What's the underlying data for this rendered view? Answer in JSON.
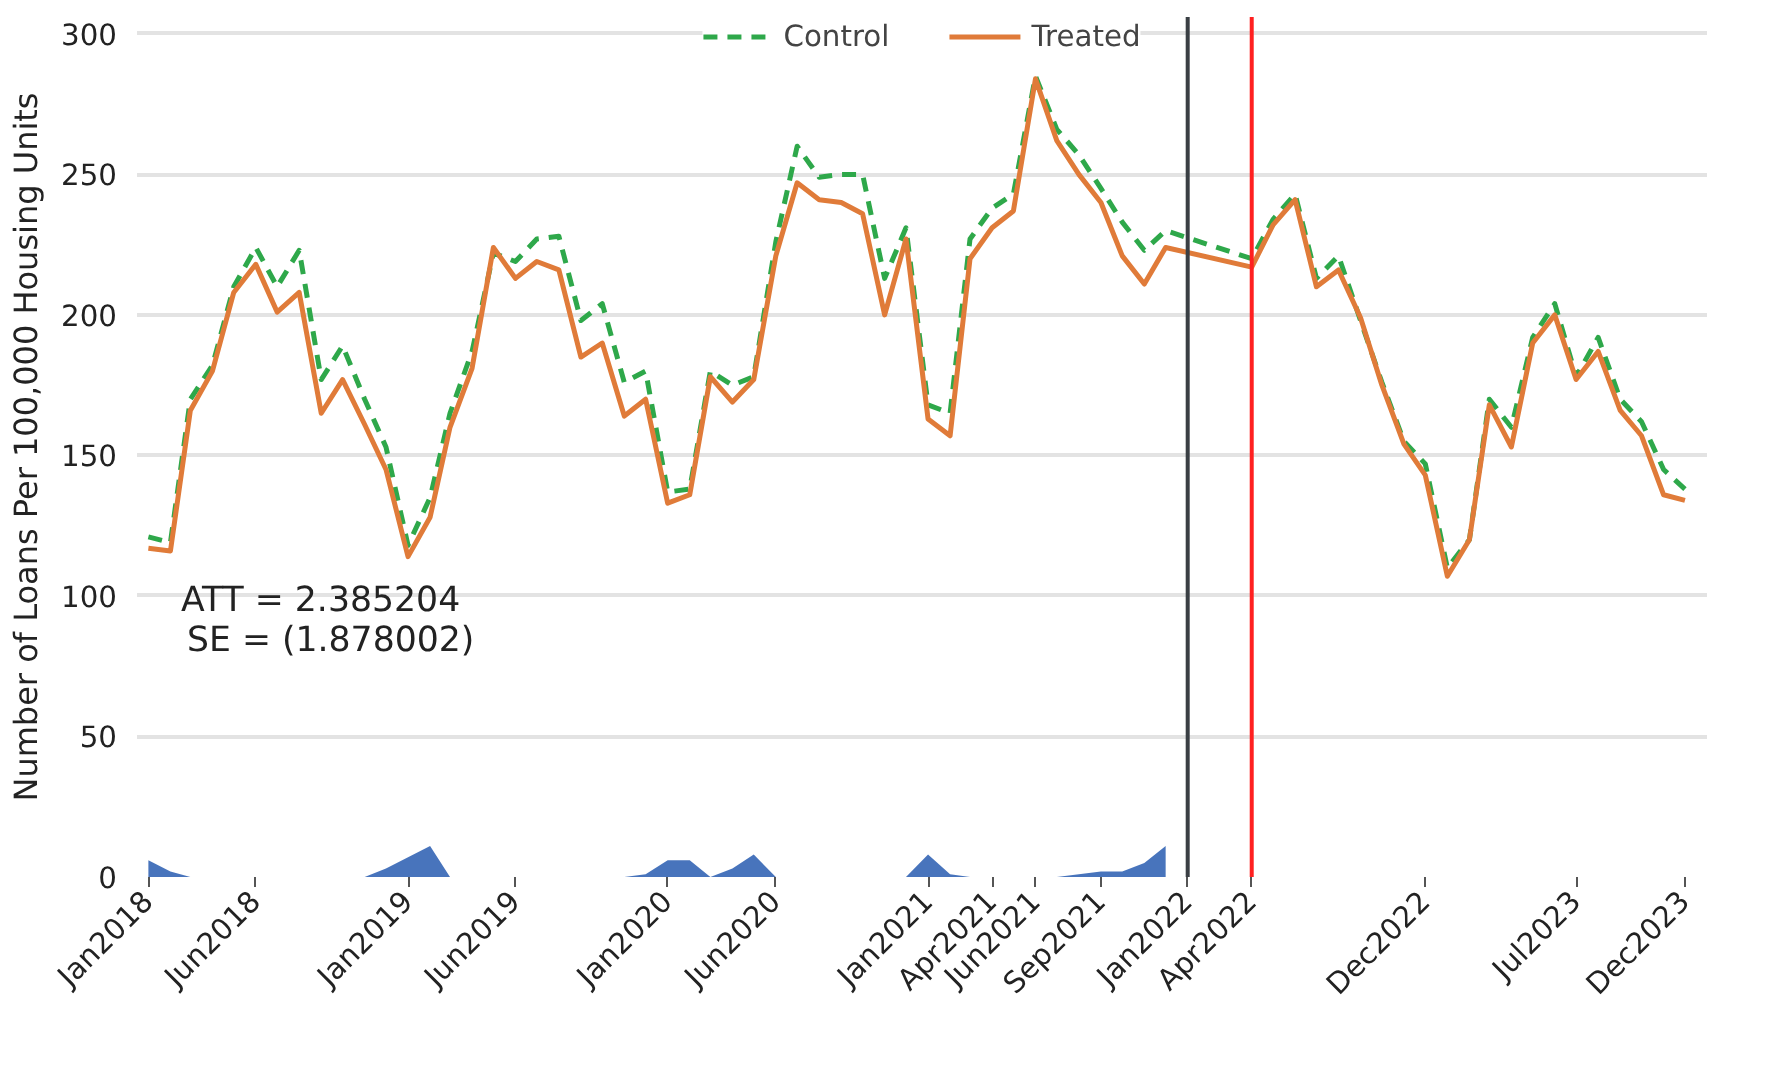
{
  "chart_data": {
    "type": "line",
    "ylabel": "Number of Loans Per 100,000 Housing Units",
    "annotations": [
      "ATT = 2.385204",
      "SE = (1.878002)"
    ],
    "legend": "top",
    "grid": "y",
    "marker": "none",
    "ylim": [
      0,
      306
    ],
    "yticks": [
      0,
      50,
      100,
      150,
      200,
      250,
      300
    ],
    "xlim": [
      "2017-12-16",
      "2024-01-01"
    ],
    "xticks": [
      {
        "value": "2018-01",
        "label": "Jan2018"
      },
      {
        "value": "2018-06",
        "label": "Jun2018"
      },
      {
        "value": "2019-01",
        "label": "Jan2019"
      },
      {
        "value": "2019-06",
        "label": "Jun2019"
      },
      {
        "value": "2020-01",
        "label": "Jan2020"
      },
      {
        "value": "2020-06",
        "label": "Jun2020"
      },
      {
        "value": "2021-01",
        "label": "Jan2021"
      },
      {
        "value": "2021-04",
        "label": "Apr2021"
      },
      {
        "value": "2021-06",
        "label": "Jun2021"
      },
      {
        "value": "2021-09",
        "label": "Sep2021"
      },
      {
        "value": "2022-01",
        "label": "Jan2022"
      },
      {
        "value": "2022-04",
        "label": "Apr2022"
      },
      {
        "value": "2022-12",
        "label": "Dec2022"
      },
      {
        "value": "2023-07",
        "label": "Jul2023"
      },
      {
        "value": "2023-12",
        "label": "Dec2023"
      }
    ],
    "ref_lines": [
      {
        "axis": "x",
        "value": "2022-01",
        "color": "#3a3f44"
      },
      {
        "axis": "x",
        "value": "2022-04",
        "color": "#ff2020"
      }
    ],
    "series": [
      {
        "type": "area",
        "color": "#3465b5",
        "x": [
          "2018-01",
          "2018-02",
          "2018-03",
          "2018-04",
          "2018-05",
          "2018-06",
          "2018-07",
          "2018-08",
          "2018-09",
          "2018-10",
          "2018-11",
          "2018-12",
          "2019-01",
          "2019-02",
          "2019-03",
          "2019-04",
          "2019-05",
          "2019-06",
          "2019-07",
          "2019-08",
          "2019-09",
          "2019-10",
          "2019-11",
          "2019-12",
          "2020-01",
          "2020-02",
          "2020-03",
          "2020-04",
          "2020-05",
          "2020-06",
          "2020-07",
          "2020-08",
          "2020-09",
          "2020-10",
          "2020-11",
          "2020-12",
          "2021-01",
          "2021-02",
          "2021-03",
          "2021-04",
          "2021-05",
          "2021-06",
          "2021-07",
          "2021-08",
          "2021-09",
          "2021-10",
          "2021-11",
          "2021-12"
        ],
        "values": [
          6,
          2,
          0,
          0,
          0,
          0,
          0,
          0,
          0,
          0,
          0,
          3,
          7,
          11,
          0,
          0,
          0,
          0,
          0,
          0,
          0,
          0,
          0,
          1,
          6,
          6,
          0,
          3,
          8,
          0,
          0,
          0,
          0,
          0,
          0,
          0,
          8,
          1,
          0,
          0,
          0,
          0,
          0,
          1,
          2,
          2,
          5,
          11
        ]
      },
      {
        "name": "Control",
        "line_style": "dashed",
        "color": "#2ea84a",
        "x": [
          "2018-01",
          "2018-02",
          "2018-03",
          "2018-04",
          "2018-05",
          "2018-06",
          "2018-07",
          "2018-08",
          "2018-09",
          "2018-10",
          "2018-11",
          "2018-12",
          "2019-01",
          "2019-02",
          "2019-03",
          "2019-04",
          "2019-05",
          "2019-06",
          "2019-07",
          "2019-08",
          "2019-09",
          "2019-10",
          "2019-11",
          "2019-12",
          "2020-01",
          "2020-02",
          "2020-03",
          "2020-04",
          "2020-05",
          "2020-06",
          "2020-07",
          "2020-08",
          "2020-09",
          "2020-10",
          "2020-11",
          "2020-12",
          "2021-01",
          "2021-02",
          "2021-03",
          "2021-04",
          "2021-05",
          "2021-06",
          "2021-07",
          "2021-08",
          "2021-09",
          "2021-10",
          "2021-11",
          "2021-12",
          "2022-04",
          "2022-05",
          "2022-06",
          "2022-07",
          "2022-08",
          "2022-09",
          "2022-10",
          "2022-11",
          "2022-12",
          "2023-01",
          "2023-02",
          "2023-03",
          "2023-04",
          "2023-05",
          "2023-06",
          "2023-07",
          "2023-08",
          "2023-09",
          "2023-10",
          "2023-11",
          "2023-12"
        ],
        "values": [
          121,
          119,
          170,
          182,
          210,
          224,
          210,
          223,
          177,
          189,
          170,
          153,
          118,
          135,
          165,
          187,
          222,
          219,
          227,
          228,
          198,
          204,
          176,
          180,
          137,
          138,
          180,
          175,
          178,
          226,
          260,
          249,
          250,
          250,
          213,
          231,
          168,
          165,
          227,
          238,
          243,
          285,
          266,
          257,
          245,
          233,
          223,
          230,
          220,
          234,
          243,
          213,
          221,
          198,
          176,
          155,
          147,
          110,
          120,
          170,
          160,
          192,
          204,
          178,
          192,
          170,
          162,
          145,
          138
        ]
      },
      {
        "name": "Treated",
        "line_style": "solid",
        "color": "#e07b39",
        "x": [
          "2018-01",
          "2018-02",
          "2018-03",
          "2018-04",
          "2018-05",
          "2018-06",
          "2018-07",
          "2018-08",
          "2018-09",
          "2018-10",
          "2018-11",
          "2018-12",
          "2019-01",
          "2019-02",
          "2019-03",
          "2019-04",
          "2019-05",
          "2019-06",
          "2019-07",
          "2019-08",
          "2019-09",
          "2019-10",
          "2019-11",
          "2019-12",
          "2020-01",
          "2020-02",
          "2020-03",
          "2020-04",
          "2020-05",
          "2020-06",
          "2020-07",
          "2020-08",
          "2020-09",
          "2020-10",
          "2020-11",
          "2020-12",
          "2021-01",
          "2021-02",
          "2021-03",
          "2021-04",
          "2021-05",
          "2021-06",
          "2021-07",
          "2021-08",
          "2021-09",
          "2021-10",
          "2021-11",
          "2021-12",
          "2022-04",
          "2022-05",
          "2022-06",
          "2022-07",
          "2022-08",
          "2022-09",
          "2022-10",
          "2022-11",
          "2022-12",
          "2023-01",
          "2023-02",
          "2023-03",
          "2023-04",
          "2023-05",
          "2023-06",
          "2023-07",
          "2023-08",
          "2023-09",
          "2023-10",
          "2023-11",
          "2023-12"
        ],
        "values": [
          117,
          116,
          166,
          180,
          208,
          218,
          201,
          208,
          165,
          177,
          161,
          145,
          114,
          128,
          160,
          181,
          224,
          213,
          219,
          216,
          185,
          190,
          164,
          170,
          133,
          136,
          178,
          169,
          177,
          221,
          247,
          241,
          240,
          236,
          200,
          227,
          163,
          157,
          220,
          231,
          237,
          284,
          262,
          250,
          240,
          221,
          211,
          224,
          217,
          232,
          241,
          210,
          216,
          199,
          175,
          154,
          143,
          107,
          120,
          168,
          153,
          190,
          200,
          177,
          187,
          166,
          157,
          136,
          134
        ]
      }
    ]
  }
}
